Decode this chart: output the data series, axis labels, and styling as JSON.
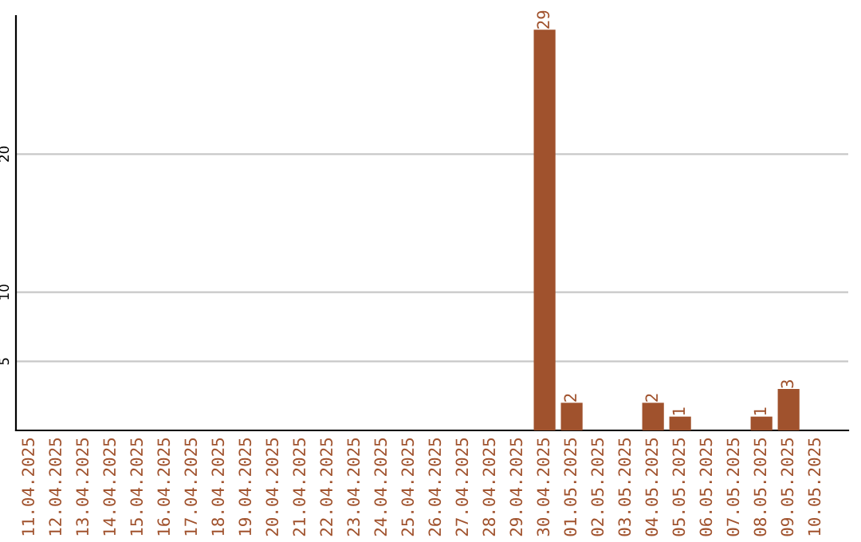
{
  "chart_data": {
    "type": "bar",
    "categories": [
      "11.04.2025",
      "12.04.2025",
      "13.04.2025",
      "14.04.2025",
      "15.04.2025",
      "16.04.2025",
      "17.04.2025",
      "18.04.2025",
      "19.04.2025",
      "20.04.2025",
      "21.04.2025",
      "22.04.2025",
      "23.04.2025",
      "24.04.2025",
      "25.04.2025",
      "26.04.2025",
      "27.04.2025",
      "28.04.2025",
      "29.04.2025",
      "30.04.2025",
      "01.05.2025",
      "02.05.2025",
      "03.05.2025",
      "04.05.2025",
      "05.05.2025",
      "06.05.2025",
      "07.05.2025",
      "08.05.2025",
      "09.05.2025",
      "10.05.2025"
    ],
    "values": [
      0,
      0,
      0,
      0,
      0,
      0,
      0,
      0,
      0,
      0,
      0,
      0,
      0,
      0,
      0,
      0,
      0,
      0,
      0,
      29,
      2,
      0,
      0,
      2,
      1,
      0,
      0,
      1,
      3,
      0
    ],
    "value_labels": [
      null,
      null,
      null,
      null,
      null,
      null,
      null,
      null,
      null,
      null,
      null,
      null,
      null,
      null,
      null,
      null,
      null,
      null,
      null,
      "29",
      "2",
      null,
      null,
      "2",
      "1",
      null,
      null,
      "1",
      "3",
      null
    ],
    "color": "#a0522d",
    "ylim": [
      0,
      30
    ],
    "yticks": [
      5,
      10,
      20
    ],
    "grid": "y"
  }
}
